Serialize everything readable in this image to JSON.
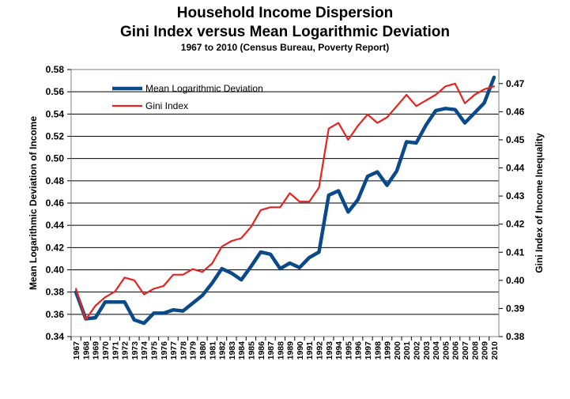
{
  "chart_data": {
    "type": "line",
    "title": "Household Income Dispersion",
    "subtitle": "Gini Index versus Mean Logarithmic Deviation",
    "note": "1967 to 2010 (Census Bureau, Poverty Report)",
    "ylabel_left": "Mean Logarithmic Deviation of Income",
    "ylabel_right": "Gini Index of Income Inequality",
    "ylim_left": [
      0.34,
      0.58
    ],
    "ylim_right": [
      0.38,
      0.475
    ],
    "yticks_left": [
      "0.34",
      "0.36",
      "0.38",
      "0.40",
      "0.42",
      "0.44",
      "0.46",
      "0.48",
      "0.50",
      "0.52",
      "0.54",
      "0.56",
      "0.58"
    ],
    "yticks_right": [
      "0.38",
      "0.39",
      "0.40",
      "0.41",
      "0.42",
      "0.43",
      "0.44",
      "0.45",
      "0.46",
      "0.47"
    ],
    "categories": [
      "1967",
      "1968",
      "1969",
      "1970",
      "1971",
      "1972",
      "1973",
      "1974",
      "1975",
      "1976",
      "1977",
      "1978",
      "1979",
      "1980",
      "1981",
      "1982",
      "1983",
      "1984",
      "1985",
      "1986",
      "1987",
      "1988",
      "1989",
      "1990",
      "1991",
      "1992",
      "1993",
      "1994",
      "1995",
      "1996",
      "1997",
      "1998",
      "1999",
      "2000",
      "2001",
      "2002",
      "2003",
      "2004",
      "2005",
      "2006",
      "2007",
      "2008",
      "2009",
      "2010"
    ],
    "grid": true,
    "series": [
      {
        "name": "Mean Logarithmic Deviation",
        "axis": "left",
        "color": "#0a4a8a",
        "values": [
          0.38,
          0.356,
          0.357,
          0.371,
          0.371,
          0.371,
          0.355,
          0.352,
          0.361,
          0.361,
          0.364,
          0.363,
          0.37,
          0.377,
          0.388,
          0.401,
          0.397,
          0.391,
          0.403,
          0.416,
          0.414,
          0.401,
          0.406,
          0.402,
          0.411,
          0.416,
          0.467,
          0.471,
          0.452,
          0.463,
          0.484,
          0.488,
          0.476,
          0.489,
          0.515,
          0.514,
          0.53,
          0.543,
          0.545,
          0.544,
          0.532,
          0.541,
          0.55,
          0.573
        ]
      },
      {
        "name": "Gini Index",
        "axis": "right",
        "color": "#e8231f",
        "values": [
          0.397,
          0.386,
          0.391,
          0.394,
          0.396,
          0.401,
          0.4,
          0.395,
          0.397,
          0.398,
          0.402,
          0.402,
          0.404,
          0.403,
          0.406,
          0.412,
          0.414,
          0.415,
          0.419,
          0.425,
          0.426,
          0.426,
          0.431,
          0.428,
          0.428,
          0.433,
          0.454,
          0.456,
          0.45,
          0.455,
          0.459,
          0.456,
          0.458,
          0.462,
          0.466,
          0.462,
          0.464,
          0.466,
          0.469,
          0.47,
          0.463,
          0.466,
          0.468,
          0.469
        ]
      }
    ]
  }
}
